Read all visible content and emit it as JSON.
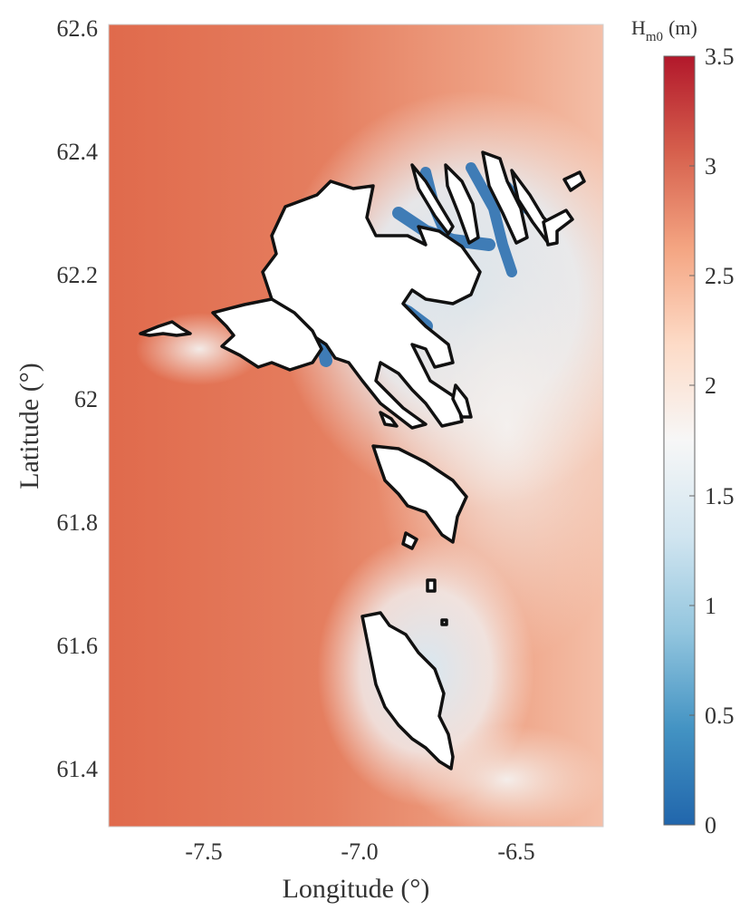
{
  "chart_data": {
    "type": "heatmap",
    "title": "",
    "xlabel": "Longitude (°)",
    "ylabel": "Latitude (°)",
    "xlim": [
      -7.82,
      -6.22
    ],
    "ylim": [
      61.3,
      62.6
    ],
    "xticks": [
      -7.5,
      -7.0,
      -6.5
    ],
    "xtick_labels": [
      "-7.5",
      "-7.0",
      "-6.5"
    ],
    "yticks": [
      61.4,
      61.6,
      61.8,
      62.0,
      62.2,
      62.4,
      62.6
    ],
    "ytick_labels": [
      "61.4",
      "61.6",
      "61.8",
      "62",
      "62.2",
      "62.4",
      "62.6"
    ],
    "grid": false,
    "colorbar": {
      "label_main": "H",
      "label_sub": "m0",
      "label_unit": "(m)",
      "range": [
        0,
        3.5
      ],
      "ticks": [
        0,
        0.5,
        1,
        1.5,
        2,
        2.5,
        3,
        3.5
      ],
      "tick_labels": [
        "0",
        "0.5",
        "1",
        "1.5",
        "2",
        "2.5",
        "3",
        "3.5"
      ],
      "colormap": [
        "#2166ac",
        "#4393c3",
        "#92c5de",
        "#d1e5f0",
        "#f7f7f7",
        "#fddbc7",
        "#f4a582",
        "#d6604d",
        "#b2182b"
      ]
    },
    "description_values": {
      "offshore_west_hm0": 3.0,
      "offshore_east_hm0": 2.3,
      "sheltered_fjords_hm0": 0.4
    }
  },
  "colors": {
    "offshore_high": "#e06b4d",
    "offshore_mid": "#ec9a7c",
    "shadow_low": "#d6e6f1",
    "fjord_blue": "#3f7cb6",
    "coast": "#111111",
    "land": "#ffffff"
  }
}
